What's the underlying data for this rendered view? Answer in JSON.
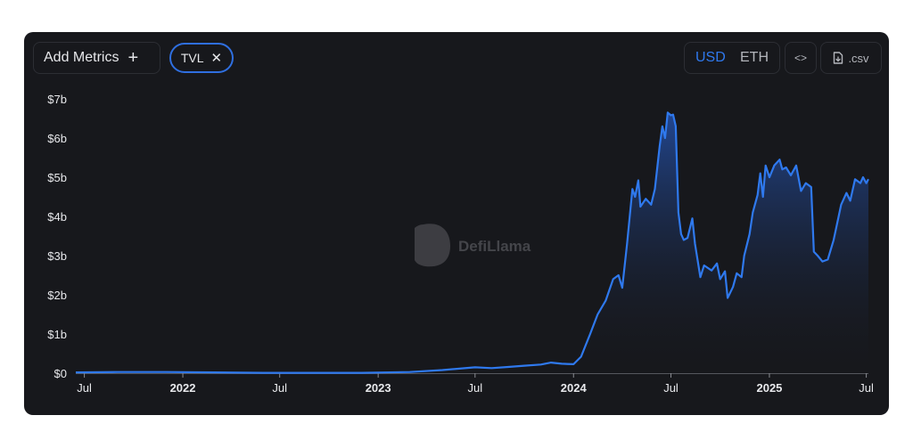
{
  "toolbar": {
    "add_metrics_label": "Add Metrics",
    "add_metrics_icon": "+",
    "chip_label": "TVL",
    "chip_close_icon": "✕",
    "currency_active": "USD",
    "currency_inactive": "ETH",
    "embed_label": "<>",
    "csv_label": ".csv"
  },
  "watermark": {
    "text": "DefiLlama"
  },
  "colors": {
    "background": "#17181c",
    "line": "#2f79ee",
    "accent": "#2f6fe0"
  },
  "chart_data": {
    "type": "area",
    "title": "",
    "xlabel": "",
    "ylabel": "",
    "ylim": [
      0,
      7
    ],
    "y_unit": "$b",
    "grid": false,
    "y_ticks": [
      {
        "value": 0,
        "label": "$0"
      },
      {
        "value": 1,
        "label": "$1b"
      },
      {
        "value": 2,
        "label": "$2b"
      },
      {
        "value": 3,
        "label": "$3b"
      },
      {
        "value": 4,
        "label": "$4b"
      },
      {
        "value": 5,
        "label": "$5b"
      },
      {
        "value": 6,
        "label": "$6b"
      },
      {
        "value": 7,
        "label": "$7b"
      }
    ],
    "x_ticks": [
      {
        "date": "2021-07-01",
        "label": "Jul",
        "bold": false
      },
      {
        "date": "2022-01-01",
        "label": "2022",
        "bold": true
      },
      {
        "date": "2022-07-01",
        "label": "Jul",
        "bold": false
      },
      {
        "date": "2023-01-01",
        "label": "2023",
        "bold": true
      },
      {
        "date": "2023-07-01",
        "label": "Jul",
        "bold": false
      },
      {
        "date": "2024-01-01",
        "label": "2024",
        "bold": true
      },
      {
        "date": "2024-07-01",
        "label": "Jul",
        "bold": false
      },
      {
        "date": "2025-01-01",
        "label": "2025",
        "bold": true
      },
      {
        "date": "2025-07-01",
        "label": "Jul",
        "bold": false
      }
    ],
    "series": [
      {
        "points": [
          [
            "2021-06-15",
            0.02
          ],
          [
            "2021-09-01",
            0.03
          ],
          [
            "2021-12-01",
            0.03
          ],
          [
            "2022-03-01",
            0.02
          ],
          [
            "2022-06-01",
            0.01
          ],
          [
            "2022-09-01",
            0.01
          ],
          [
            "2022-12-01",
            0.01
          ],
          [
            "2023-03-01",
            0.03
          ],
          [
            "2023-05-01",
            0.08
          ],
          [
            "2023-07-01",
            0.15
          ],
          [
            "2023-08-01",
            0.13
          ],
          [
            "2023-09-01",
            0.16
          ],
          [
            "2023-10-01",
            0.19
          ],
          [
            "2023-11-01",
            0.22
          ],
          [
            "2023-11-20",
            0.27
          ],
          [
            "2023-12-10",
            0.24
          ],
          [
            "2024-01-01",
            0.23
          ],
          [
            "2024-01-15",
            0.42
          ],
          [
            "2024-02-01",
            1.0
          ],
          [
            "2024-02-15",
            1.5
          ],
          [
            "2024-03-01",
            1.85
          ],
          [
            "2024-03-15",
            2.4
          ],
          [
            "2024-03-25",
            2.5
          ],
          [
            "2024-04-01",
            2.18
          ],
          [
            "2024-04-10",
            3.3
          ],
          [
            "2024-04-20",
            4.7
          ],
          [
            "2024-04-25",
            4.5
          ],
          [
            "2024-05-01",
            4.92
          ],
          [
            "2024-05-05",
            4.25
          ],
          [
            "2024-05-15",
            4.45
          ],
          [
            "2024-05-25",
            4.3
          ],
          [
            "2024-06-01",
            4.7
          ],
          [
            "2024-06-10",
            5.8
          ],
          [
            "2024-06-15",
            6.3
          ],
          [
            "2024-06-20",
            6.0
          ],
          [
            "2024-06-25",
            6.65
          ],
          [
            "2024-07-01",
            6.58
          ],
          [
            "2024-07-05",
            6.6
          ],
          [
            "2024-07-10",
            6.3
          ],
          [
            "2024-07-15",
            4.1
          ],
          [
            "2024-07-20",
            3.55
          ],
          [
            "2024-07-25",
            3.4
          ],
          [
            "2024-08-01",
            3.45
          ],
          [
            "2024-08-10",
            3.95
          ],
          [
            "2024-08-15",
            3.3
          ],
          [
            "2024-08-25",
            2.45
          ],
          [
            "2024-09-01",
            2.75
          ],
          [
            "2024-09-15",
            2.62
          ],
          [
            "2024-09-25",
            2.8
          ],
          [
            "2024-10-01",
            2.4
          ],
          [
            "2024-10-10",
            2.6
          ],
          [
            "2024-10-15",
            1.92
          ],
          [
            "2024-10-25",
            2.2
          ],
          [
            "2024-11-01",
            2.55
          ],
          [
            "2024-11-10",
            2.45
          ],
          [
            "2024-11-15",
            3.0
          ],
          [
            "2024-11-25",
            3.55
          ],
          [
            "2024-12-01",
            4.1
          ],
          [
            "2024-12-10",
            4.55
          ],
          [
            "2024-12-15",
            5.1
          ],
          [
            "2024-12-20",
            4.5
          ],
          [
            "2024-12-25",
            5.3
          ],
          [
            "2025-01-01",
            5.0
          ],
          [
            "2025-01-10",
            5.3
          ],
          [
            "2025-01-20",
            5.45
          ],
          [
            "2025-01-25",
            5.2
          ],
          [
            "2025-02-01",
            5.25
          ],
          [
            "2025-02-10",
            5.05
          ],
          [
            "2025-02-20",
            5.3
          ],
          [
            "2025-03-01",
            4.65
          ],
          [
            "2025-03-10",
            4.85
          ],
          [
            "2025-03-20",
            4.75
          ],
          [
            "2025-03-25",
            3.1
          ],
          [
            "2025-04-01",
            3.0
          ],
          [
            "2025-04-10",
            2.85
          ],
          [
            "2025-04-20",
            2.9
          ],
          [
            "2025-05-01",
            3.4
          ],
          [
            "2025-05-15",
            4.3
          ],
          [
            "2025-05-25",
            4.6
          ],
          [
            "2025-06-01",
            4.4
          ],
          [
            "2025-06-10",
            4.95
          ],
          [
            "2025-06-20",
            4.85
          ],
          [
            "2025-06-25",
            5.0
          ],
          [
            "2025-07-01",
            4.85
          ],
          [
            "2025-07-05",
            4.95
          ]
        ]
      }
    ]
  }
}
